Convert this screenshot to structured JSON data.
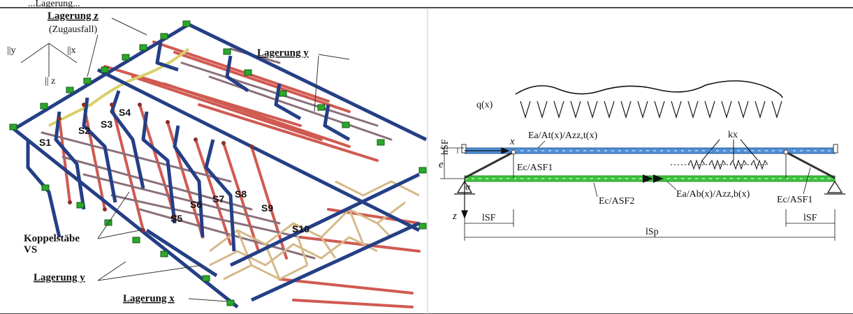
{
  "header": {
    "caption_fragment": "...Lagerung..."
  },
  "left_figure": {
    "labels": {
      "lagerung_z": "Lagerung z",
      "zugausfall": "(Zugausfall)",
      "axis_y": "||y",
      "axis_x": "||x",
      "axis_z": "|| z",
      "lagerung_y_top": "Lagerung y",
      "koppelstaebe_1": "Koppelstäbe",
      "koppelstaebe_2": "VS",
      "lagerung_y_bottom": "Lagerung y",
      "lagerung_x": "Lagerung x"
    },
    "sections": [
      "S1",
      "S2",
      "S3",
      "S4",
      "S5",
      "S6",
      "S7",
      "S8",
      "S9",
      "S10"
    ],
    "colors": {
      "frame": "#243f86",
      "bar": "#d05a52",
      "coupling": "#8a6f7a",
      "cable": "#d8d06a",
      "support": "#2aa82a",
      "net": "#d6b98a"
    }
  },
  "right_figure": {
    "labels": {
      "load": "q(x)",
      "x": "x",
      "z": "z",
      "top_chord": "Ea/At(x)/Azz,t(x)",
      "kx": "kx",
      "hsf": "hSF",
      "e": "e",
      "ec_asf1_left": "Ec/ASF1",
      "alpha": "α",
      "bottom_chord": "Ea/Ab(x)/Azz,b(x)",
      "ec_asf2": "Ec/ASF2",
      "ec_asf1_right": "Ec/ASF1",
      "lsf_left": "lSF",
      "lsf_right": "lSF",
      "lsp": "lSp"
    },
    "colors": {
      "top_chord": "#4f8fd6",
      "bottom_chord": "#3ec43e"
    }
  }
}
